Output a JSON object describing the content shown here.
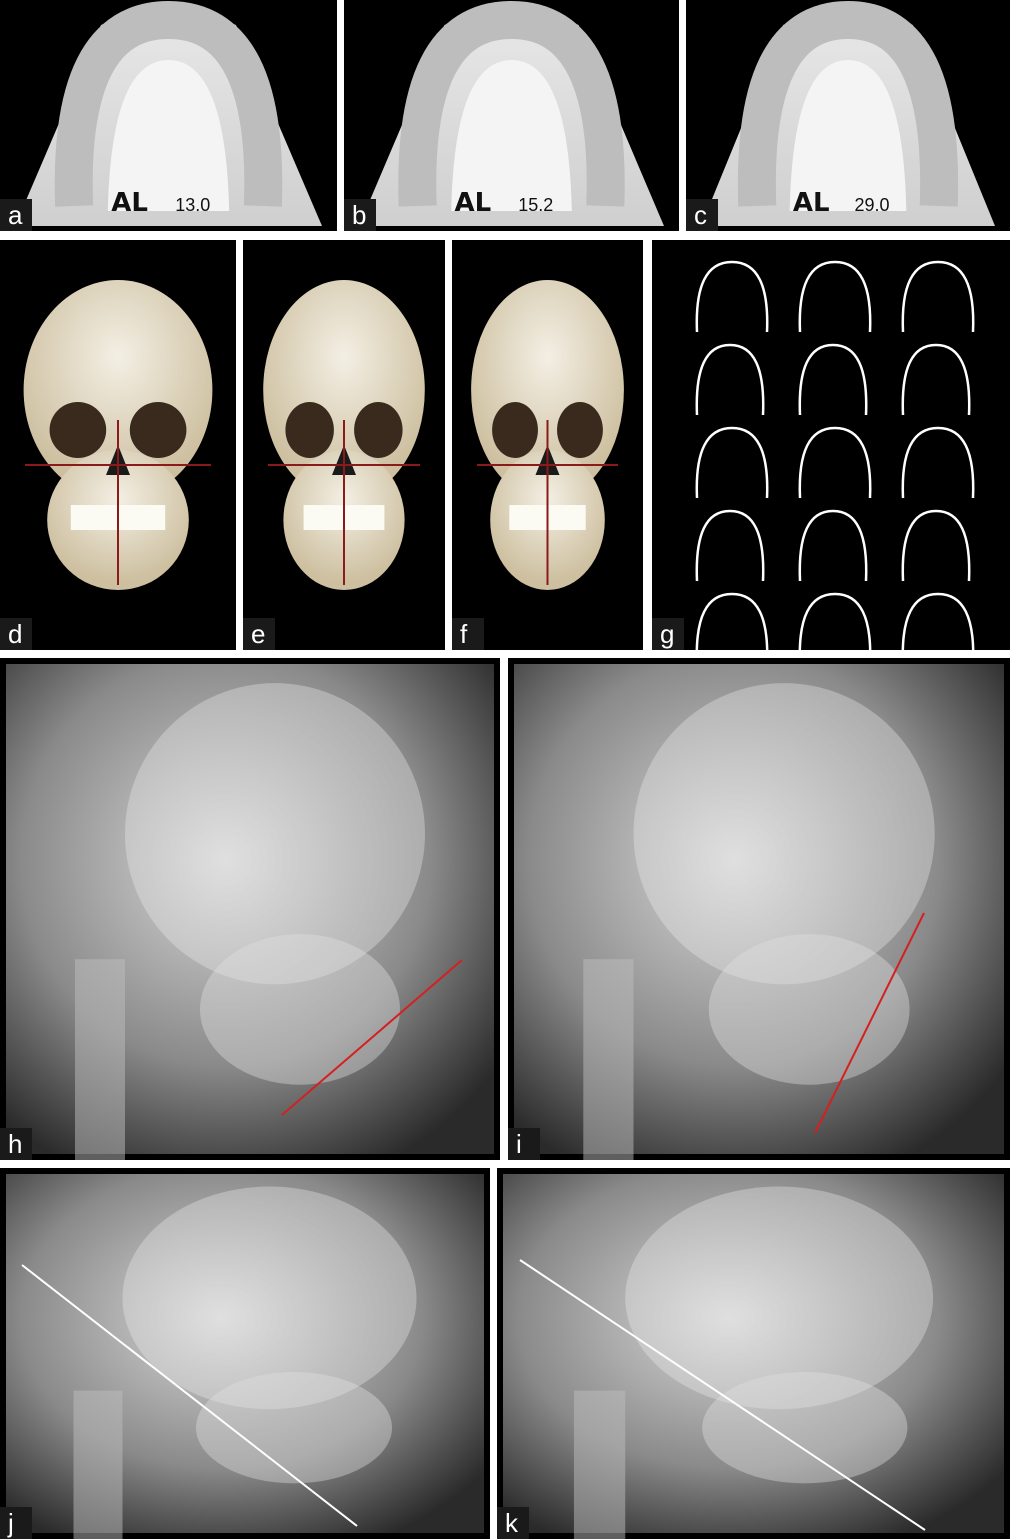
{
  "panels": [
    {
      "label": "a",
      "cast_text": "AL",
      "cast_value": "13.0"
    },
    {
      "label": "b",
      "cast_text": "AL",
      "cast_value": "15.2"
    },
    {
      "label": "c",
      "cast_text": "AL",
      "cast_value": "29.0"
    },
    {
      "label": "d"
    },
    {
      "label": "e"
    },
    {
      "label": "f"
    },
    {
      "label": "g"
    },
    {
      "label": "h"
    },
    {
      "label": "i"
    },
    {
      "label": "j"
    },
    {
      "label": "k"
    }
  ]
}
